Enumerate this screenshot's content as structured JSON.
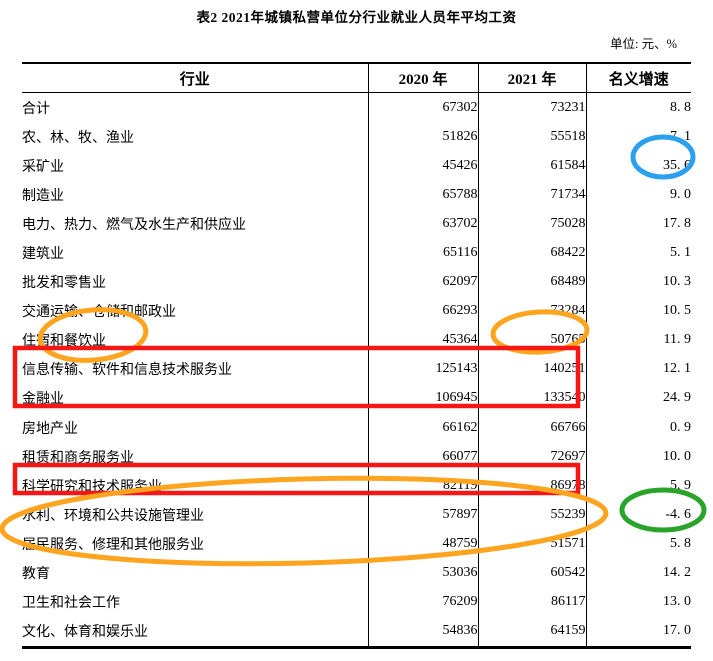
{
  "title": "表2 2021年城镇私营单位分行业就业人员年平均工资",
  "unit_note": "单位: 元、%",
  "table": {
    "headers": [
      "行业",
      "2020 年",
      "2021 年",
      "名义增速"
    ],
    "rows": [
      {
        "industry": "合计",
        "y2020": "67302",
        "y2021": "73231",
        "growth": "8. 8"
      },
      {
        "industry": "农、林、牧、渔业",
        "y2020": "51826",
        "y2021": "55518",
        "growth": "7. 1"
      },
      {
        "industry": "采矿业",
        "y2020": "45426",
        "y2021": "61584",
        "growth": "35. 6"
      },
      {
        "industry": "制造业",
        "y2020": "65788",
        "y2021": "71734",
        "growth": "9. 0"
      },
      {
        "industry": "电力、热力、燃气及水生产和供应业",
        "y2020": "63702",
        "y2021": "75028",
        "growth": "17. 8"
      },
      {
        "industry": "建筑业",
        "y2020": "65116",
        "y2021": "68422",
        "growth": "5. 1"
      },
      {
        "industry": "批发和零售业",
        "y2020": "62097",
        "y2021": "68489",
        "growth": "10. 3"
      },
      {
        "industry": "交通运输、仓储和邮政业",
        "y2020": "66293",
        "y2021": "73284",
        "growth": "10. 5"
      },
      {
        "industry": "住宿和餐饮业",
        "y2020": "45364",
        "y2021": "50765",
        "growth": "11. 9"
      },
      {
        "industry": "信息传输、软件和信息技术服务业",
        "y2020": "125143",
        "y2021": "140251",
        "growth": "12. 1"
      },
      {
        "industry": "金融业",
        "y2020": "106945",
        "y2021": "133540",
        "growth": "24. 9"
      },
      {
        "industry": "房地产业",
        "y2020": "66162",
        "y2021": "66766",
        "growth": "0. 9"
      },
      {
        "industry": "租赁和商务服务业",
        "y2020": "66077",
        "y2021": "72697",
        "growth": "10. 0"
      },
      {
        "industry": "科学研究和技术服务业",
        "y2020": "82119",
        "y2021": "86978",
        "growth": "5. 9"
      },
      {
        "industry": "水利、环境和公共设施管理业",
        "y2020": "57897",
        "y2021": "55239",
        "growth": "-4. 6"
      },
      {
        "industry": "居民服务、修理和其他服务业",
        "y2020": "48759",
        "y2021": "51571",
        "growth": "5. 8"
      },
      {
        "industry": "教育",
        "y2020": "53036",
        "y2021": "60542",
        "growth": "14. 2"
      },
      {
        "industry": "卫生和社会工作",
        "y2020": "76209",
        "y2021": "86117",
        "growth": "13. 0"
      },
      {
        "industry": "文化、体育和娱乐业",
        "y2020": "54836",
        "y2021": "64159",
        "growth": "17. 0"
      }
    ]
  },
  "annotations": {
    "blue_circle": {
      "color": "#2aa0ef",
      "around": "35. 6（采矿业 名义增速）"
    },
    "orange_circle_industry": {
      "color": "#ffa41e",
      "around": "住宿和餐饮业"
    },
    "orange_circle_value": {
      "color": "#ffa41e",
      "around": "50765"
    },
    "red_box_top": {
      "color": "#f51616",
      "around": "信息传输、软件和信息技术服务业 与 金融业 两行"
    },
    "red_box_bottom": {
      "color": "#f51616",
      "around": "科学研究和技术服务业 一行"
    },
    "orange_oval_rows": {
      "color": "#ffa41e",
      "around": "水利、环境和公共设施管理业 与 居民服务、修理和其他服务业 两行"
    },
    "green_circle": {
      "color": "#2aa32a",
      "around": "-4. 6（水利、环境和公共设施管理业 名义增速）"
    }
  }
}
